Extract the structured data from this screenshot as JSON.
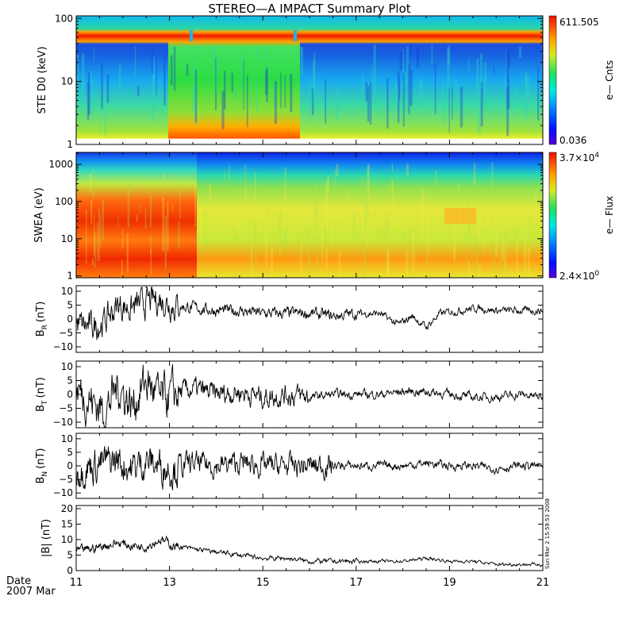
{
  "title": "STEREO—A IMPACT Summary Plot",
  "date_label": "Date",
  "date_sub": "2007 Mar",
  "x_ticks": [
    "11",
    "13",
    "15",
    "17",
    "19",
    "21"
  ],
  "stamp": "Sun Mar  2 15:59:53 2008",
  "chart_data": [
    {
      "type": "heatmap",
      "name": "ste",
      "ylabel": "STE D0 (keV)",
      "yscale": "log",
      "ylim": [
        1,
        100
      ],
      "yticks": [
        "1",
        "10",
        "100"
      ],
      "colorbar": {
        "max": "611.505",
        "min": "0.036",
        "label": "e— Cnts"
      }
    },
    {
      "type": "heatmap",
      "name": "swea",
      "ylabel": "SWEA (eV)",
      "yscale": "log",
      "ylim": [
        1,
        2000
      ],
      "yticks": [
        "1",
        "10",
        "100",
        "1000"
      ],
      "colorbar": {
        "max_base": "3.7×10",
        "max_exp": "4",
        "min_base": "2.4×10",
        "min_exp": "0",
        "label": "e— Flux"
      }
    },
    {
      "type": "line",
      "name": "br",
      "ylabel_main": "B",
      "ylabel_sub": "R",
      "ylabel_unit": "(nT)",
      "ylim": [
        -12,
        12
      ],
      "yticks": [
        "10",
        "5",
        "0",
        "−5",
        "−10"
      ],
      "x_days": [
        11,
        11.3,
        11.6,
        11.9,
        12.2,
        12.5,
        12.8,
        13.1,
        13.5,
        14,
        14.5,
        15,
        15.5,
        16,
        16.5,
        17,
        17.5,
        17.9,
        18.2,
        18.5,
        18.8,
        19.2,
        19.6,
        20,
        20.5,
        21
      ],
      "y": [
        -2,
        -3,
        -1,
        5,
        4,
        6,
        7,
        5,
        4,
        3,
        3,
        2,
        2,
        2,
        1,
        2,
        2,
        -2,
        1,
        -3,
        2,
        3,
        4,
        3,
        3,
        3
      ]
    },
    {
      "type": "line",
      "name": "bt",
      "ylabel_main": "B",
      "ylabel_sub": "T",
      "ylabel_unit": "(nT)",
      "ylim": [
        -12,
        12
      ],
      "yticks": [
        "10",
        "5",
        "0",
        "−5",
        "−10"
      ],
      "x_days": [
        11,
        11.3,
        11.6,
        11.9,
        12.2,
        12.5,
        12.8,
        13.1,
        13.5,
        14,
        14.5,
        15,
        15.5,
        16,
        16.5,
        17,
        17.5,
        18,
        18.5,
        19,
        19.5,
        20,
        20.5,
        21
      ],
      "y": [
        2,
        -2,
        -6,
        3,
        -4,
        5,
        -2,
        0,
        2,
        0,
        1,
        -1,
        0,
        -1,
        0,
        0,
        0,
        1,
        1,
        0,
        -1,
        -1,
        0,
        -1
      ]
    },
    {
      "type": "line",
      "name": "bn",
      "ylabel_main": "B",
      "ylabel_sub": "N",
      "ylabel_unit": "(nT)",
      "ylim": [
        -12,
        12
      ],
      "yticks": [
        "10",
        "5",
        "0",
        "−5",
        "−10"
      ],
      "x_days": [
        11,
        11.3,
        11.6,
        11.9,
        12.2,
        12.5,
        12.8,
        13.1,
        13.5,
        14,
        14.5,
        15,
        15.5,
        16,
        16.5,
        17,
        17.5,
        18,
        18.5,
        19,
        19.5,
        20,
        20.5,
        21
      ],
      "y": [
        -1,
        0,
        1,
        2,
        -1,
        2,
        0,
        -1,
        1,
        0,
        1,
        0,
        0,
        0,
        0,
        0,
        0,
        0,
        1,
        0,
        0,
        -1,
        0,
        0
      ]
    },
    {
      "type": "line",
      "name": "bmag",
      "ylabel": "|B| (nT)",
      "ylim": [
        0,
        21
      ],
      "yticks": [
        "20",
        "15",
        "10",
        "5",
        "0"
      ],
      "x_days": [
        11,
        11.3,
        11.6,
        11.9,
        12.2,
        12.5,
        12.8,
        13.1,
        13.5,
        14,
        14.5,
        15,
        15.5,
        16,
        16.5,
        17,
        17.5,
        18,
        18.5,
        19,
        19.5,
        20,
        20.5,
        21
      ],
      "y": [
        6,
        7,
        8,
        9,
        8,
        8,
        10,
        8,
        7,
        6,
        5,
        4,
        4,
        3,
        3,
        3,
        3,
        3,
        4,
        3,
        3,
        2,
        2,
        2
      ]
    }
  ]
}
